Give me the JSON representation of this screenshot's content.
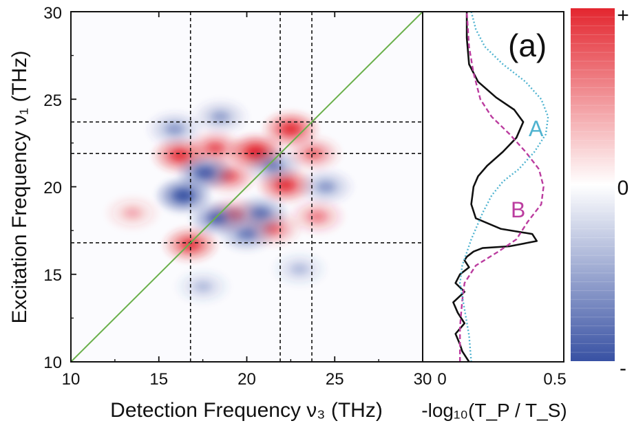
{
  "chart_data": [
    {
      "type": "heatmap",
      "panel_label": "(a)",
      "xlabel": "Detection Frequency ν₃ (THz)",
      "ylabel": "Excitation Frequency ν₁ (THz)",
      "xlim": [
        10,
        30
      ],
      "ylim": [
        10,
        30
      ],
      "xticks": [
        "10",
        "15",
        "20",
        "25",
        "30"
      ],
      "yticks": [
        "10",
        "15",
        "20",
        "25",
        "30"
      ],
      "diagonal": {
        "from": [
          10,
          10
        ],
        "to": [
          30,
          30
        ],
        "color": "#6ab04c"
      },
      "guide_lines_x": [
        16.8,
        21.9,
        23.7
      ],
      "guide_lines_y": [
        16.8,
        21.9,
        23.7
      ],
      "peaks": [
        {
          "x": 20.5,
          "y": 22.0,
          "sign": "+",
          "amplitude": 1.0
        },
        {
          "x": 22.5,
          "y": 23.3,
          "sign": "+",
          "amplitude": 0.85
        },
        {
          "x": 16.2,
          "y": 21.8,
          "sign": "+",
          "amplitude": 0.8
        },
        {
          "x": 18.2,
          "y": 22.2,
          "sign": "+",
          "amplitude": 0.55
        },
        {
          "x": 22.2,
          "y": 20.1,
          "sign": "+",
          "amplitude": 0.8
        },
        {
          "x": 19.0,
          "y": 20.6,
          "sign": "+",
          "amplitude": 0.5
        },
        {
          "x": 23.8,
          "y": 21.9,
          "sign": "+",
          "amplitude": 0.45
        },
        {
          "x": 16.8,
          "y": 16.7,
          "sign": "+",
          "amplitude": 0.75
        },
        {
          "x": 21.5,
          "y": 17.6,
          "sign": "+",
          "amplitude": 0.45
        },
        {
          "x": 19.3,
          "y": 18.4,
          "sign": "+",
          "amplitude": 0.4
        },
        {
          "x": 24.0,
          "y": 18.3,
          "sign": "+",
          "amplitude": 0.35
        },
        {
          "x": 13.5,
          "y": 18.5,
          "sign": "+",
          "amplitude": 0.2
        },
        {
          "x": 16.4,
          "y": 19.5,
          "sign": "-",
          "amplitude": 0.95
        },
        {
          "x": 17.6,
          "y": 20.8,
          "sign": "-",
          "amplitude": 0.75
        },
        {
          "x": 18.3,
          "y": 18.2,
          "sign": "-",
          "amplitude": 0.65
        },
        {
          "x": 20.8,
          "y": 18.5,
          "sign": "-",
          "amplitude": 0.55
        },
        {
          "x": 20.0,
          "y": 17.3,
          "sign": "-",
          "amplitude": 0.5
        },
        {
          "x": 21.5,
          "y": 21.2,
          "sign": "-",
          "amplitude": 0.45
        },
        {
          "x": 15.9,
          "y": 23.3,
          "sign": "-",
          "amplitude": 0.35
        },
        {
          "x": 18.5,
          "y": 24.0,
          "sign": "-",
          "amplitude": 0.3
        },
        {
          "x": 24.5,
          "y": 20.0,
          "sign": "-",
          "amplitude": 0.35
        },
        {
          "x": 23.0,
          "y": 15.3,
          "sign": "-",
          "amplitude": 0.2
        },
        {
          "x": 17.5,
          "y": 14.3,
          "sign": "-",
          "amplitude": 0.2
        }
      ]
    },
    {
      "type": "line",
      "xlabel": "-log₁₀(T_P / T_S)",
      "xlim": [
        0,
        0.5
      ],
      "xtick_labels": [
        "0",
        "0.5"
      ],
      "ylim": [
        10,
        30
      ],
      "series": [
        {
          "name": "",
          "style": "solid",
          "color": "#111111",
          "x": [
            0.12,
            0.09,
            0.08,
            0.06,
            0.1,
            0.07,
            0.05,
            0.1,
            0.06,
            0.08,
            0.12,
            0.1,
            0.11,
            0.14,
            0.18,
            0.3,
            0.42,
            0.4,
            0.26,
            0.15,
            0.13,
            0.14,
            0.16,
            0.2,
            0.27,
            0.33,
            0.36,
            0.32,
            0.24,
            0.16,
            0.12,
            0.11,
            0.11
          ],
          "y": [
            10.0,
            10.6,
            11.0,
            11.6,
            12.2,
            12.8,
            13.4,
            14.0,
            14.5,
            15.0,
            15.4,
            15.8,
            16.0,
            16.3,
            16.5,
            16.6,
            16.9,
            17.3,
            17.6,
            18.2,
            19.0,
            20.0,
            20.6,
            21.2,
            22.0,
            22.8,
            23.7,
            24.4,
            25.1,
            26.0,
            27.0,
            28.5,
            30.0
          ]
        },
        {
          "name": "B",
          "style": "dashed",
          "color": "#bb3c9f",
          "x": [
            0.08,
            0.08,
            0.09,
            0.1,
            0.15,
            0.25,
            0.33,
            0.38,
            0.44,
            0.45,
            0.43,
            0.37,
            0.3,
            0.22,
            0.17,
            0.14,
            0.12,
            0.11
          ],
          "y": [
            10.0,
            12.0,
            13.5,
            14.5,
            15.5,
            16.3,
            17.0,
            18.0,
            19.0,
            20.0,
            21.0,
            22.0,
            23.0,
            24.0,
            25.0,
            26.5,
            28.0,
            30.0
          ]
        },
        {
          "name": "A",
          "style": "dotted",
          "color": "#4fb3d0",
          "x": [
            0.13,
            0.12,
            0.1,
            0.08,
            0.09,
            0.13,
            0.18,
            0.22,
            0.27,
            0.34,
            0.41,
            0.46,
            0.47,
            0.44,
            0.37,
            0.27,
            0.19,
            0.15,
            0.13
          ],
          "y": [
            10.0,
            11.5,
            13.0,
            14.5,
            15.5,
            17.0,
            18.5,
            19.5,
            20.3,
            21.0,
            22.0,
            23.0,
            24.0,
            25.0,
            26.0,
            27.0,
            28.0,
            29.0,
            30.0
          ]
        }
      ]
    },
    {
      "type": "colorbar",
      "colors": [
        "#3851a3",
        "#ffffff",
        "#e3262f"
      ],
      "labels": [
        "+",
        "0",
        "-"
      ]
    }
  ]
}
